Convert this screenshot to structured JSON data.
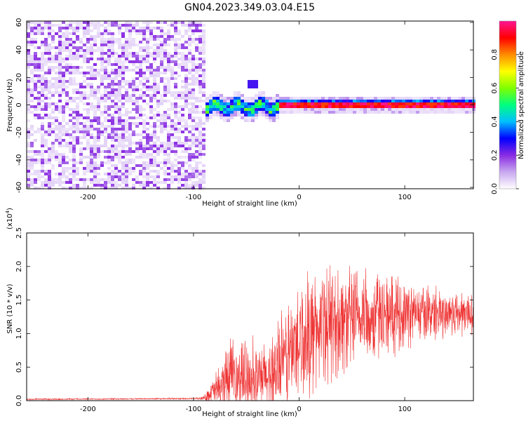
{
  "title": "GN04.2023.349.03.04.E15",
  "chart_data": [
    {
      "type": "heatmap",
      "xlabel": "Height of straight line (km)",
      "ylabel": "Frequency (Hz)",
      "xlim": [
        -258,
        165
      ],
      "ylim": [
        -61,
        61
      ],
      "xticks": [
        -200,
        -100,
        0,
        100
      ],
      "yticks": [
        -60,
        -40,
        -20,
        0,
        20,
        40,
        60
      ],
      "noise_region_x": [
        -258,
        -90
      ],
      "signal_band": {
        "x_start": -90,
        "x_end": 165,
        "center_hz": 0,
        "half_width_hz": 3
      },
      "colorbar": {
        "label": "Normalized spectral amplitude",
        "range": [
          0,
          1
        ],
        "ticks": [
          0.0,
          0.2,
          0.4,
          0.6,
          0.8
        ],
        "colormap": [
          "#ffffff",
          "#c8a8f0",
          "#8a2be2",
          "#0000ff",
          "#00bfff",
          "#00ff7f",
          "#7fff00",
          "#ffff00",
          "#ff8c00",
          "#ff0000",
          "#ff1493"
        ]
      }
    },
    {
      "type": "line",
      "xlabel": "Height of straight line (km)",
      "ylabel": "SNR (10 * v/v)",
      "yscale_note": "(x10",
      "yscale_exp": "4",
      "yscale_close": ")",
      "xlim": [
        -258,
        165
      ],
      "ylim": [
        0,
        2.5
      ],
      "xticks": [
        -200,
        -100,
        0,
        100
      ],
      "yticks": [
        0.0,
        0.5,
        1.0,
        1.5,
        2.0,
        2.5
      ],
      "color": "#ee3333",
      "envelope": {
        "x": [
          -258,
          -100,
          -90,
          -75,
          -70,
          -60,
          -50,
          -40,
          -30,
          -20,
          -10,
          0,
          10,
          20,
          30,
          40,
          50,
          60,
          70,
          80,
          90,
          100,
          110,
          120,
          130,
          140,
          150,
          165
        ],
        "base": [
          0.02,
          0.03,
          0.04,
          0.2,
          0.3,
          0.35,
          0.4,
          0.3,
          0.35,
          0.5,
          0.7,
          0.9,
          1.0,
          1.1,
          1.15,
          1.2,
          1.2,
          1.25,
          1.25,
          1.3,
          1.3,
          1.3,
          1.3,
          1.3,
          1.3,
          1.3,
          1.3,
          1.3
        ],
        "amp": [
          0.01,
          0.01,
          0.03,
          0.35,
          0.5,
          0.5,
          0.55,
          0.45,
          0.55,
          0.7,
          0.8,
          0.9,
          0.9,
          0.85,
          0.85,
          0.8,
          0.75,
          0.7,
          0.7,
          0.6,
          0.55,
          0.5,
          0.45,
          0.4,
          0.4,
          0.35,
          0.35,
          0.35
        ]
      }
    }
  ]
}
